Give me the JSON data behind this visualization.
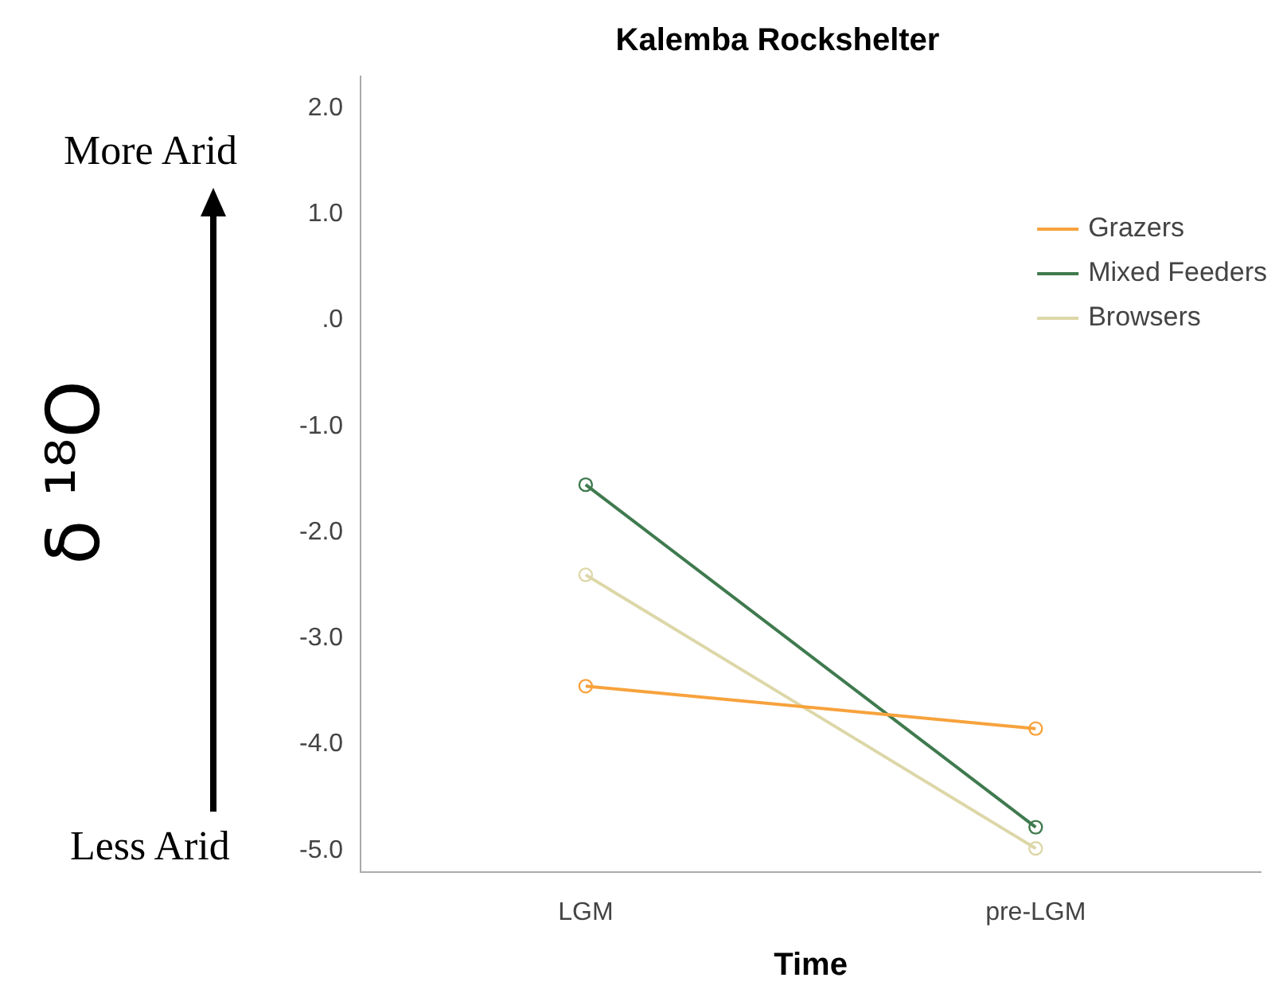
{
  "chart_data": {
    "type": "line",
    "title": "Kalemba Rockshelter",
    "xlabel": "Time",
    "ylabel": "δ ¹⁸O",
    "annotations": [
      "More Arid",
      "Less Arid"
    ],
    "categories": [
      "LGM",
      "pre-LGM"
    ],
    "series": [
      {
        "name": "Grazers",
        "color": "#f7a23c",
        "values": [
          -3.45,
          -3.85
        ]
      },
      {
        "name": "Mixed Feeders",
        "color": "#3f7a4e",
        "values": [
          -1.55,
          -4.78
        ]
      },
      {
        "name": "Browsers",
        "color": "#ddd7a8",
        "values": [
          -2.4,
          -4.98
        ]
      }
    ],
    "ylim": [
      -5.2,
      2.3
    ],
    "yticks": [
      {
        "value": -5,
        "label": "-5.0"
      },
      {
        "value": -4,
        "label": "-4.0"
      },
      {
        "value": -3,
        "label": "-3.0"
      },
      {
        "value": -2,
        "label": "-2.0"
      },
      {
        "value": -1,
        "label": "-1.0"
      },
      {
        "value": 0,
        "label": ".0"
      },
      {
        "value": 1,
        "label": "1.0"
      },
      {
        "value": 2,
        "label": "2.0"
      }
    ],
    "grid": false,
    "legend": "top right",
    "marker": "circle",
    "line_style": "solid"
  }
}
